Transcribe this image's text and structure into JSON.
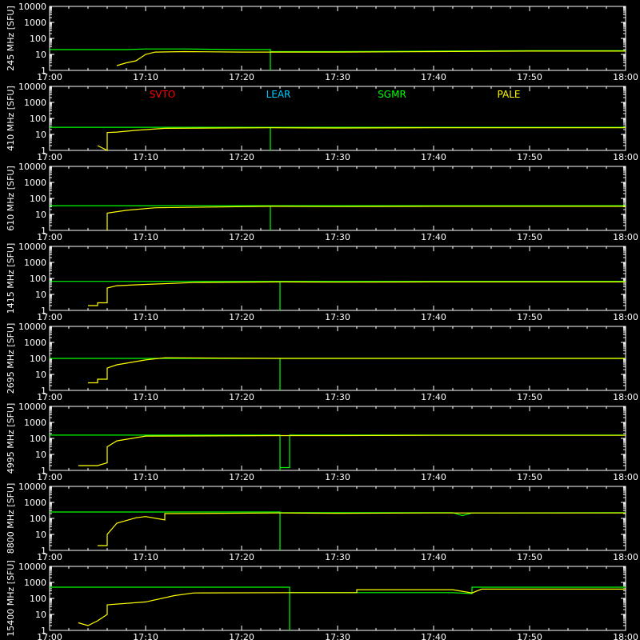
{
  "colors": {
    "background": "#000000",
    "axes": "#ffffff",
    "svto": "#ff0000",
    "lear": "#00ccff",
    "sgmr": "#00ff00",
    "pale": "#ffff00"
  },
  "legend": [
    {
      "name": "SVTO",
      "color": "#ff0000"
    },
    {
      "name": "LEAR",
      "color": "#00ccff"
    },
    {
      "name": "SGMR",
      "color": "#00ff00"
    },
    {
      "name": "PALE",
      "color": "#ffff00"
    }
  ],
  "chart_data": {
    "type": "line",
    "x_axis": {
      "ticks": [
        "17:00",
        "17:10",
        "17:20",
        "17:30",
        "17:40",
        "17:50",
        "18:00"
      ],
      "range": [
        "17:00",
        "18:00"
      ]
    },
    "y_axis": {
      "unit": "[SFU]",
      "scale": "log",
      "ticks": [
        "1",
        "10",
        "100",
        "1000",
        "10000"
      ],
      "range": [
        1,
        10000
      ]
    },
    "grid": false,
    "legend_position": "top of panel 2",
    "panels": [
      {
        "ylabel": "245 MHz",
        "series": [
          {
            "name": "SGMR",
            "points": [
              [
                "17:00",
                20
              ],
              [
                "17:05",
                20
              ],
              [
                "17:08",
                20
              ],
              [
                "17:10",
                22
              ],
              [
                "17:14",
                22
              ],
              [
                "17:20",
                20
              ],
              [
                "17:23",
                20
              ],
              [
                "17:23",
                1
              ],
              [
                "17:23",
                15
              ],
              [
                "17:30",
                15
              ],
              [
                "17:40",
                16
              ],
              [
                "17:50",
                17
              ],
              [
                "18:00",
                17
              ]
            ]
          },
          {
            "name": "PALE",
            "points": [
              [
                "17:07",
                2
              ],
              [
                "17:08",
                3
              ],
              [
                "17:09",
                4
              ],
              [
                "17:10",
                10
              ],
              [
                "17:11",
                14
              ],
              [
                "17:14",
                15
              ],
              [
                "17:20",
                14
              ],
              [
                "17:30",
                14
              ],
              [
                "17:40",
                15
              ],
              [
                "17:50",
                16
              ],
              [
                "18:00",
                16
              ]
            ]
          }
        ]
      },
      {
        "ylabel": "410 MHz",
        "series": [
          {
            "name": "SGMR",
            "points": [
              [
                "17:00",
                28
              ],
              [
                "17:23",
                28
              ],
              [
                "17:23",
                1
              ],
              [
                "17:23",
                28
              ],
              [
                "18:00",
                28
              ]
            ]
          },
          {
            "name": "PALE",
            "points": [
              [
                "17:05",
                2
              ],
              [
                "17:06",
                1
              ],
              [
                "17:06",
                13
              ],
              [
                "17:07",
                14
              ],
              [
                "17:09",
                18
              ],
              [
                "17:12",
                24
              ],
              [
                "17:23",
                26
              ],
              [
                "17:30",
                25
              ],
              [
                "17:40",
                26
              ],
              [
                "17:50",
                26
              ],
              [
                "18:00",
                26
              ]
            ]
          }
        ]
      },
      {
        "ylabel": "610 MHz",
        "series": [
          {
            "name": "SGMR",
            "points": [
              [
                "17:00",
                35
              ],
              [
                "17:23",
                35
              ],
              [
                "17:23",
                1
              ],
              [
                "17:23",
                35
              ],
              [
                "18:00",
                35
              ]
            ]
          },
          {
            "name": "PALE",
            "points": [
              [
                "17:06",
                1
              ],
              [
                "17:06",
                12
              ],
              [
                "17:08",
                18
              ],
              [
                "17:11",
                26
              ],
              [
                "17:23",
                32
              ],
              [
                "17:30",
                31
              ],
              [
                "17:40",
                32
              ],
              [
                "17:50",
                32
              ],
              [
                "18:00",
                32
              ]
            ]
          }
        ]
      },
      {
        "ylabel": "1415 MHz",
        "series": [
          {
            "name": "SGMR",
            "points": [
              [
                "17:00",
                65
              ],
              [
                "17:24",
                65
              ],
              [
                "17:24",
                1
              ],
              [
                "17:24",
                65
              ],
              [
                "18:00",
                65
              ]
            ]
          },
          {
            "name": "PALE",
            "points": [
              [
                "17:04",
                2
              ],
              [
                "17:05",
                2
              ],
              [
                "17:05",
                3
              ],
              [
                "17:06",
                3
              ],
              [
                "17:06",
                25
              ],
              [
                "17:07",
                35
              ],
              [
                "17:10",
                42
              ],
              [
                "17:15",
                55
              ],
              [
                "17:24",
                60
              ],
              [
                "17:30",
                58
              ],
              [
                "17:40",
                60
              ],
              [
                "17:50",
                60
              ],
              [
                "18:00",
                60
              ]
            ]
          }
        ]
      },
      {
        "ylabel": "2695 MHz",
        "series": [
          {
            "name": "SGMR",
            "points": [
              [
                "17:00",
                100
              ],
              [
                "17:24",
                100
              ],
              [
                "17:24",
                1
              ],
              [
                "17:24",
                100
              ],
              [
                "18:00",
                100
              ]
            ]
          },
          {
            "name": "PALE",
            "points": [
              [
                "17:04",
                3
              ],
              [
                "17:05",
                3
              ],
              [
                "17:05",
                5
              ],
              [
                "17:06",
                5
              ],
              [
                "17:06",
                25
              ],
              [
                "17:07",
                40
              ],
              [
                "17:10",
                80
              ],
              [
                "17:12",
                110
              ],
              [
                "17:24",
                100
              ],
              [
                "17:30",
                100
              ],
              [
                "17:40",
                100
              ],
              [
                "17:50",
                100
              ],
              [
                "18:00",
                100
              ]
            ]
          }
        ]
      },
      {
        "ylabel": "4995 MHz",
        "series": [
          {
            "name": "SGMR",
            "points": [
              [
                "17:00",
                160
              ],
              [
                "17:24",
                160
              ],
              [
                "17:24",
                1
              ],
              [
                "17:24",
                1.5
              ],
              [
                "17:25",
                1.5
              ],
              [
                "17:25",
                160
              ],
              [
                "18:00",
                160
              ]
            ]
          },
          {
            "name": "PALE",
            "points": [
              [
                "17:03",
                2
              ],
              [
                "17:04",
                2
              ],
              [
                "17:05",
                2
              ],
              [
                "17:06",
                3
              ],
              [
                "17:06",
                30
              ],
              [
                "17:07",
                70
              ],
              [
                "17:10",
                140
              ],
              [
                "17:24",
                150
              ],
              [
                "17:30",
                150
              ],
              [
                "17:40",
                155
              ],
              [
                "17:50",
                155
              ],
              [
                "18:00",
                155
              ]
            ]
          }
        ]
      },
      {
        "ylabel": "8800 MHz",
        "series": [
          {
            "name": "SGMR",
            "points": [
              [
                "17:00",
                250
              ],
              [
                "17:24",
                250
              ],
              [
                "17:24",
                1
              ],
              [
                "17:24",
                230
              ],
              [
                "17:42",
                230
              ],
              [
                "17:43",
                150
              ],
              [
                "17:44",
                220
              ],
              [
                "18:00",
                230
              ]
            ]
          },
          {
            "name": "PALE",
            "points": [
              [
                "17:05",
                2
              ],
              [
                "17:06",
                2
              ],
              [
                "17:06",
                10
              ],
              [
                "17:07",
                50
              ],
              [
                "17:09",
                110
              ],
              [
                "17:10",
                130
              ],
              [
                "17:12",
                80
              ],
              [
                "17:12",
                200
              ],
              [
                "17:24",
                220
              ],
              [
                "17:30",
                210
              ],
              [
                "17:40",
                220
              ],
              [
                "17:44",
                220
              ],
              [
                "17:50",
                220
              ],
              [
                "18:00",
                220
              ]
            ]
          }
        ]
      },
      {
        "ylabel": "15400 MHz",
        "series": [
          {
            "name": "SGMR",
            "points": [
              [
                "17:00",
                500
              ],
              [
                "17:25",
                500
              ],
              [
                "17:25",
                1
              ],
              [
                "17:25",
                230
              ],
              [
                "17:42",
                230
              ],
              [
                "17:44",
                200
              ],
              [
                "17:44",
                500
              ],
              [
                "18:00",
                500
              ]
            ]
          },
          {
            "name": "PALE",
            "points": [
              [
                "17:03",
                3
              ],
              [
                "17:04",
                2
              ],
              [
                "17:05",
                4
              ],
              [
                "17:06",
                10
              ],
              [
                "17:06",
                40
              ],
              [
                "17:10",
                60
              ],
              [
                "17:13",
                150
              ],
              [
                "17:15",
                220
              ],
              [
                "17:25",
                230
              ],
              [
                "17:32",
                230
              ],
              [
                "17:32",
                350
              ],
              [
                "17:42",
                350
              ],
              [
                "17:44",
                220
              ],
              [
                "17:45",
                380
              ],
              [
                "17:50",
                380
              ],
              [
                "18:00",
                380
              ]
            ]
          }
        ]
      }
    ]
  }
}
